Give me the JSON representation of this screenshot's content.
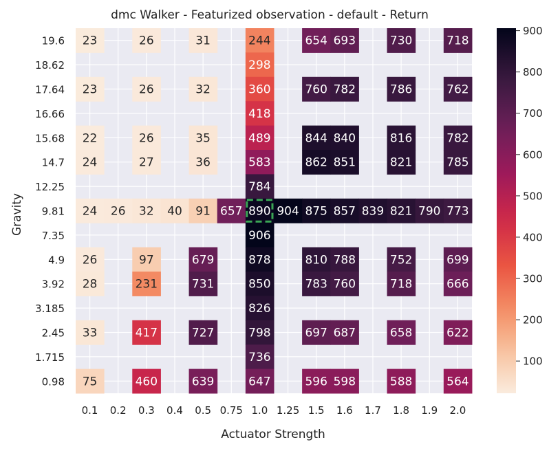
{
  "chart_data": {
    "type": "heatmap",
    "title": "dmc Walker - Featurized observation - default - Return",
    "xlabel": "Actuator Strength",
    "ylabel": "Gravity",
    "x_categories": [
      "0.1",
      "0.2",
      "0.3",
      "0.4",
      "0.5",
      "0.75",
      "1.0",
      "1.25",
      "1.5",
      "1.6",
      "1.7",
      "1.8",
      "1.9",
      "2.0"
    ],
    "y_categories": [
      "19.6",
      "18.62",
      "17.64",
      "16.66",
      "15.68",
      "14.7",
      "12.25",
      "9.81",
      "7.35",
      "4.9",
      "3.92",
      "3.185",
      "2.45",
      "1.715",
      "0.98"
    ],
    "values": [
      [
        23,
        null,
        26,
        null,
        31,
        null,
        244,
        null,
        654,
        693,
        null,
        730,
        null,
        718
      ],
      [
        null,
        null,
        null,
        null,
        null,
        null,
        298,
        null,
        null,
        null,
        null,
        null,
        null,
        null
      ],
      [
        23,
        null,
        26,
        null,
        32,
        null,
        360,
        null,
        760,
        782,
        null,
        786,
        null,
        762
      ],
      [
        null,
        null,
        null,
        null,
        null,
        null,
        418,
        null,
        null,
        null,
        null,
        null,
        null,
        null
      ],
      [
        22,
        null,
        26,
        null,
        35,
        null,
        489,
        null,
        844,
        840,
        null,
        816,
        null,
        782
      ],
      [
        24,
        null,
        27,
        null,
        36,
        null,
        583,
        null,
        862,
        851,
        null,
        821,
        null,
        785
      ],
      [
        null,
        null,
        null,
        null,
        null,
        null,
        784,
        null,
        null,
        null,
        null,
        null,
        null,
        null
      ],
      [
        24,
        26,
        32,
        40,
        91,
        657,
        890,
        904,
        875,
        857,
        839,
        821,
        790,
        773
      ],
      [
        null,
        null,
        null,
        null,
        null,
        null,
        906,
        null,
        null,
        null,
        null,
        null,
        null,
        null
      ],
      [
        26,
        null,
        97,
        null,
        679,
        null,
        878,
        null,
        810,
        788,
        null,
        752,
        null,
        699
      ],
      [
        28,
        null,
        231,
        null,
        731,
        null,
        850,
        null,
        783,
        760,
        null,
        718,
        null,
        666
      ],
      [
        null,
        null,
        null,
        null,
        null,
        null,
        826,
        null,
        null,
        null,
        null,
        null,
        null,
        null
      ],
      [
        33,
        null,
        417,
        null,
        727,
        null,
        798,
        null,
        697,
        687,
        null,
        658,
        null,
        622
      ],
      [
        null,
        null,
        null,
        null,
        null,
        null,
        736,
        null,
        null,
        null,
        null,
        null,
        null,
        null
      ],
      [
        75,
        null,
        460,
        null,
        639,
        null,
        647,
        null,
        596,
        598,
        null,
        588,
        null,
        564
      ]
    ],
    "highlight": {
      "x": "1.0",
      "y": "9.81",
      "style": "dashed",
      "color": "#3aa655"
    },
    "colorbar": {
      "range": [
        22,
        906
      ],
      "ticks": [
        100,
        200,
        300,
        400,
        500,
        600,
        700,
        800,
        900
      ],
      "colormap": "rocket_r"
    },
    "background_color": "#eaeaf2",
    "grid": true
  }
}
